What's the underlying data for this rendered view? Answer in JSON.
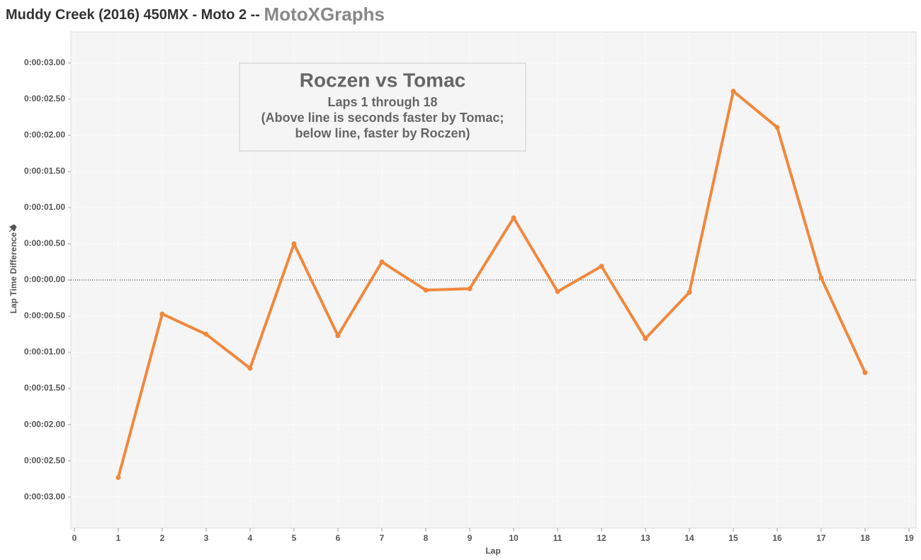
{
  "chart_data": {
    "type": "line",
    "title": "Muddy Creek (2016) 450MX - Moto 2 --",
    "title_brand": "MotoXGraphs",
    "annotation": {
      "title": "Roczen vs Tomac",
      "lines": [
        "Laps 1 through 18",
        "(Above line is seconds faster by Tomac;",
        "below line, faster by Roczen)"
      ]
    },
    "x_label": "Lap",
    "y_label": "Lap Time Difference",
    "x": [
      1,
      2,
      3,
      4,
      5,
      6,
      7,
      8,
      9,
      10,
      11,
      12,
      13,
      14,
      15,
      16,
      17,
      18
    ],
    "series": [
      {
        "name": "Lap Time Difference",
        "color": "#f0883e",
        "values": [
          -2.73,
          -0.47,
          -0.75,
          -1.22,
          0.5,
          -0.77,
          0.25,
          -0.14,
          -0.12,
          0.86,
          -0.16,
          0.19,
          -0.81,
          -0.17,
          2.61,
          2.11,
          0.03,
          -1.28
        ]
      }
    ],
    "xlim": [
      -0.08,
      19.16
    ],
    "xticks": [
      0,
      1,
      2,
      3,
      4,
      5,
      6,
      7,
      8,
      9,
      10,
      11,
      12,
      13,
      14,
      15,
      16,
      17,
      18,
      19
    ],
    "ylim": [
      -3.43,
      3.43
    ],
    "yticks": [
      {
        "value": 3,
        "label": "0:00:03.00"
      },
      {
        "value": 2.5,
        "label": "0:00:02.50"
      },
      {
        "value": 2,
        "label": "0:00:02.00"
      },
      {
        "value": 1.5,
        "label": "0:00:01.50"
      },
      {
        "value": 1,
        "label": "0:00:01.00"
      },
      {
        "value": 0.5,
        "label": "0:00:00.50"
      },
      {
        "value": 0,
        "label": "0:00:00.00"
      },
      {
        "value": -0.5,
        "label": "0:00:00.50"
      },
      {
        "value": -1,
        "label": "0:00:01.00"
      },
      {
        "value": -1.5,
        "label": "0:00:01.50"
      },
      {
        "value": -2,
        "label": "0:00:02.00"
      },
      {
        "value": -2.5,
        "label": "0:00:02.50"
      },
      {
        "value": -3,
        "label": "0:00:03.00"
      }
    ],
    "grid": true
  }
}
